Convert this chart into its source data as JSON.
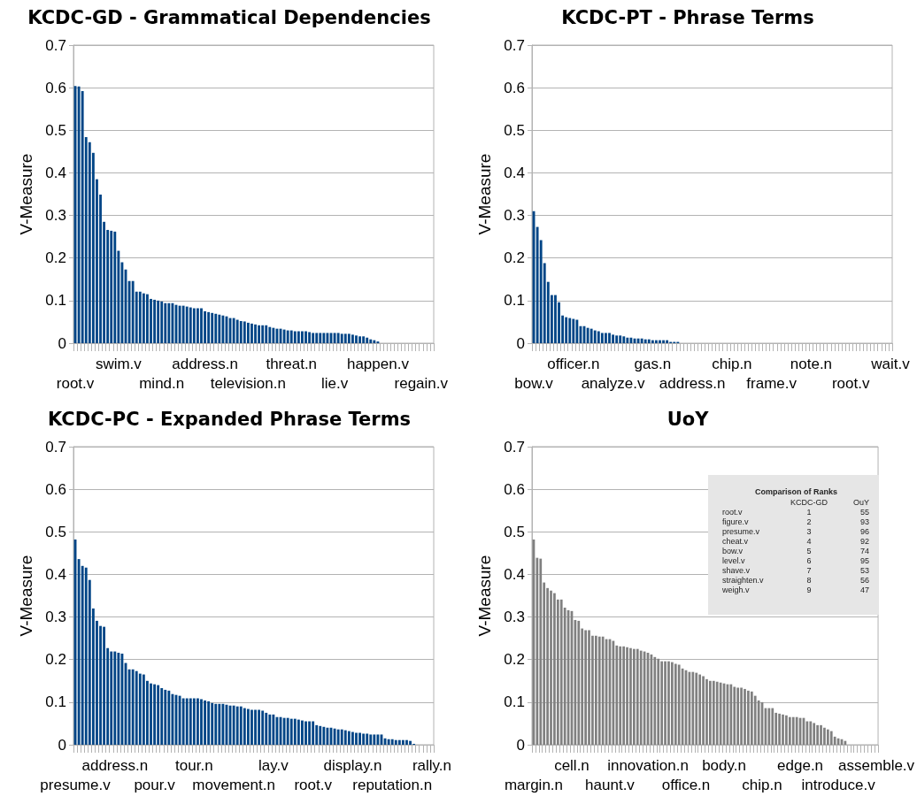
{
  "chart_data": [
    {
      "type": "bar",
      "title": "KCDC-GD - Grammatical Dependencies",
      "ylabel": "V-Measure",
      "color": "#004586",
      "grid": "y",
      "ylim": [
        0,
        0.7
      ],
      "yticks": [
        0,
        0.1,
        0.2,
        0.3,
        0.4,
        0.5,
        0.6,
        0.7
      ],
      "categories": [
        "root.v",
        null,
        null,
        null,
        null,
        null,
        null,
        null,
        null,
        null,
        null,
        null,
        "swim.v",
        null,
        null,
        null,
        null,
        null,
        null,
        null,
        null,
        null,
        null,
        null,
        "mind.n",
        null,
        null,
        null,
        null,
        null,
        null,
        null,
        null,
        null,
        null,
        null,
        "address.n",
        null,
        null,
        null,
        null,
        null,
        null,
        null,
        null,
        null,
        null,
        null,
        "television.n",
        null,
        null,
        null,
        null,
        null,
        null,
        null,
        null,
        null,
        null,
        null,
        "threat.n",
        null,
        null,
        null,
        null,
        null,
        null,
        null,
        null,
        null,
        null,
        null,
        "lie.v",
        null,
        null,
        null,
        null,
        null,
        null,
        null,
        null,
        null,
        null,
        null,
        "happen.v",
        null,
        null,
        null,
        null,
        null,
        null,
        null,
        null,
        null,
        null,
        null,
        "regain.v",
        null,
        null,
        null
      ],
      "values": [
        0.604,
        0.603,
        0.592,
        0.484,
        0.472,
        0.447,
        0.385,
        0.349,
        0.285,
        0.266,
        0.264,
        0.262,
        0.217,
        0.19,
        0.173,
        0.146,
        0.146,
        0.121,
        0.121,
        0.117,
        0.115,
        0.104,
        0.102,
        0.1,
        0.098,
        0.094,
        0.094,
        0.094,
        0.09,
        0.088,
        0.088,
        0.086,
        0.084,
        0.082,
        0.082,
        0.082,
        0.075,
        0.073,
        0.071,
        0.069,
        0.067,
        0.065,
        0.063,
        0.059,
        0.059,
        0.055,
        0.052,
        0.051,
        0.048,
        0.046,
        0.044,
        0.042,
        0.042,
        0.042,
        0.038,
        0.036,
        0.034,
        0.034,
        0.032,
        0.03,
        0.03,
        0.028,
        0.028,
        0.028,
        0.028,
        0.026,
        0.024,
        0.024,
        0.024,
        0.024,
        0.024,
        0.024,
        0.024,
        0.024,
        0.022,
        0.022,
        0.022,
        0.02,
        0.018,
        0.016,
        0.016,
        0.013,
        0.009,
        0.007,
        0.004,
        0,
        0,
        0,
        0,
        0,
        0,
        0,
        0,
        0,
        0,
        0,
        0,
        0,
        0,
        0
      ]
    },
    {
      "type": "bar",
      "title": "KCDC-PT - Phrase Terms",
      "ylabel": "V-Measure",
      "color": "#004586",
      "grid": "y",
      "ylim": [
        0,
        0.7
      ],
      "yticks": [
        0,
        0.1,
        0.2,
        0.3,
        0.4,
        0.5,
        0.6,
        0.7
      ],
      "categories": [
        "bow.v",
        null,
        null,
        null,
        null,
        null,
        null,
        null,
        null,
        null,
        null,
        "officer.n",
        null,
        null,
        null,
        null,
        null,
        null,
        null,
        null,
        null,
        null,
        "analyze.v",
        null,
        null,
        null,
        null,
        null,
        null,
        null,
        null,
        null,
        null,
        "gas.n",
        null,
        null,
        null,
        null,
        null,
        null,
        null,
        null,
        null,
        null,
        "address.n",
        null,
        null,
        null,
        null,
        null,
        null,
        null,
        null,
        null,
        null,
        "chip.n",
        null,
        null,
        null,
        null,
        null,
        null,
        null,
        null,
        null,
        null,
        "frame.v",
        null,
        null,
        null,
        null,
        null,
        null,
        null,
        null,
        null,
        null,
        "note.n",
        null,
        null,
        null,
        null,
        null,
        null,
        null,
        null,
        null,
        null,
        "root.v",
        null,
        null,
        null,
        null,
        null,
        null,
        null,
        null,
        null,
        null,
        "wait.v"
      ],
      "values": [
        0.31,
        0.273,
        0.242,
        0.188,
        0.144,
        0.113,
        0.113,
        0.096,
        0.065,
        0.061,
        0.059,
        0.057,
        0.055,
        0.04,
        0.04,
        0.036,
        0.034,
        0.03,
        0.028,
        0.024,
        0.024,
        0.024,
        0.02,
        0.018,
        0.018,
        0.016,
        0.013,
        0.013,
        0.011,
        0.011,
        0.011,
        0.009,
        0.009,
        0.007,
        0.007,
        0.007,
        0.007,
        0.007,
        0.003,
        0.003,
        0.003,
        0,
        0,
        0,
        0,
        0,
        0,
        0,
        0,
        0,
        0,
        0,
        0,
        0,
        0,
        0,
        0,
        0,
        0,
        0,
        0,
        0,
        0,
        0,
        0,
        0,
        0,
        0,
        0,
        0,
        0,
        0,
        0,
        0,
        0,
        0,
        0,
        0,
        0,
        0,
        0,
        0,
        0,
        0,
        0,
        0,
        0,
        0,
        0,
        0,
        0,
        0,
        0,
        0,
        0,
        0,
        0,
        0,
        0,
        0
      ]
    },
    {
      "type": "bar",
      "title": "KCDC-PC - Expanded Phrase Terms",
      "ylabel": "V-Measure",
      "color": "#004586",
      "grid": "y",
      "ylim": [
        0,
        0.7
      ],
      "yticks": [
        0,
        0.1,
        0.2,
        0.3,
        0.4,
        0.5,
        0.6,
        0.7
      ],
      "categories": [
        "presume.v",
        null,
        null,
        null,
        null,
        null,
        null,
        null,
        null,
        null,
        null,
        "address.n",
        null,
        null,
        null,
        null,
        null,
        null,
        null,
        null,
        null,
        null,
        "pour.v",
        null,
        null,
        null,
        null,
        null,
        null,
        null,
        null,
        null,
        null,
        "tour.n",
        null,
        null,
        null,
        null,
        null,
        null,
        null,
        null,
        null,
        null,
        "movement.n",
        null,
        null,
        null,
        null,
        null,
        null,
        null,
        null,
        null,
        null,
        "lay.v",
        null,
        null,
        null,
        null,
        null,
        null,
        null,
        null,
        null,
        null,
        "root.v",
        null,
        null,
        null,
        null,
        null,
        null,
        null,
        null,
        null,
        null,
        "display.n",
        null,
        null,
        null,
        null,
        null,
        null,
        null,
        null,
        null,
        null,
        "reputation.n",
        null,
        null,
        null,
        null,
        null,
        null,
        null,
        null,
        null,
        null,
        "rally.n"
      ],
      "values": [
        0.482,
        0.436,
        0.42,
        0.416,
        0.387,
        0.32,
        0.291,
        0.279,
        0.277,
        0.227,
        0.219,
        0.219,
        0.216,
        0.214,
        0.192,
        0.177,
        0.177,
        0.173,
        0.167,
        0.165,
        0.15,
        0.144,
        0.142,
        0.14,
        0.133,
        0.129,
        0.127,
        0.119,
        0.117,
        0.115,
        0.109,
        0.109,
        0.109,
        0.109,
        0.109,
        0.107,
        0.104,
        0.102,
        0.098,
        0.096,
        0.096,
        0.096,
        0.094,
        0.092,
        0.092,
        0.09,
        0.09,
        0.086,
        0.084,
        0.082,
        0.082,
        0.082,
        0.08,
        0.075,
        0.071,
        0.071,
        0.065,
        0.065,
        0.063,
        0.063,
        0.061,
        0.061,
        0.059,
        0.057,
        0.055,
        0.055,
        0.055,
        0.046,
        0.044,
        0.042,
        0.04,
        0.04,
        0.038,
        0.036,
        0.036,
        0.034,
        0.032,
        0.03,
        0.028,
        0.028,
        0.026,
        0.026,
        0.024,
        0.024,
        0.024,
        0.024,
        0.015,
        0.013,
        0.013,
        0.011,
        0.011,
        0.011,
        0.011,
        0.009,
        0.002,
        0,
        0,
        0,
        0,
        0
      ]
    },
    {
      "type": "bar",
      "title": "UoY",
      "ylabel": "V-Measure",
      "color": "#808080",
      "grid": "y",
      "ylim": [
        0,
        0.7
      ],
      "yticks": [
        0,
        0.1,
        0.2,
        0.3,
        0.4,
        0.5,
        0.6,
        0.7
      ],
      "categories": [
        "margin.n",
        null,
        null,
        null,
        null,
        null,
        null,
        null,
        null,
        null,
        null,
        "cell.n",
        null,
        null,
        null,
        null,
        null,
        null,
        null,
        null,
        null,
        null,
        "haunt.v",
        null,
        null,
        null,
        null,
        null,
        null,
        null,
        null,
        null,
        null,
        "innovation.n",
        null,
        null,
        null,
        null,
        null,
        null,
        null,
        null,
        null,
        null,
        "office.n",
        null,
        null,
        null,
        null,
        null,
        null,
        null,
        null,
        null,
        null,
        "body.n",
        null,
        null,
        null,
        null,
        null,
        null,
        null,
        null,
        null,
        null,
        "chip.n",
        null,
        null,
        null,
        null,
        null,
        null,
        null,
        null,
        null,
        null,
        "edge.n",
        null,
        null,
        null,
        null,
        null,
        null,
        null,
        null,
        null,
        null,
        "introduce.v",
        null,
        null,
        null,
        null,
        null,
        null,
        null,
        null,
        null,
        null,
        "assemble.v"
      ],
      "values": [
        0.482,
        0.439,
        0.437,
        0.381,
        0.368,
        0.362,
        0.356,
        0.341,
        0.341,
        0.322,
        0.316,
        0.314,
        0.293,
        0.291,
        0.273,
        0.269,
        0.269,
        0.256,
        0.256,
        0.254,
        0.254,
        0.248,
        0.248,
        0.244,
        0.233,
        0.231,
        0.231,
        0.229,
        0.227,
        0.225,
        0.225,
        0.221,
        0.219,
        0.216,
        0.212,
        0.206,
        0.202,
        0.196,
        0.196,
        0.196,
        0.194,
        0.19,
        0.188,
        0.179,
        0.175,
        0.171,
        0.171,
        0.169,
        0.165,
        0.161,
        0.154,
        0.15,
        0.15,
        0.148,
        0.146,
        0.144,
        0.142,
        0.142,
        0.136,
        0.134,
        0.134,
        0.131,
        0.127,
        0.125,
        0.115,
        0.104,
        0.1,
        0.086,
        0.086,
        0.086,
        0.075,
        0.073,
        0.071,
        0.069,
        0.065,
        0.065,
        0.065,
        0.063,
        0.063,
        0.055,
        0.055,
        0.051,
        0.046,
        0.046,
        0.04,
        0.036,
        0.032,
        0.019,
        0.015,
        0.013,
        0.009,
        0,
        0,
        0,
        0,
        0,
        0,
        0,
        0,
        0
      ],
      "annotations": [
        "Comparison of Ranks",
        "\tKCDC-GD\tOuY",
        "root.v\t1\t55",
        "figure.v\t2\t93",
        "presume.v\t3\t96",
        "cheat.v\t4\t92",
        "bow.v\t5\t74",
        "level.v\t6\t95",
        "shave.v\t7\t53",
        "straighten.v\t8\t56",
        "weigh.v\t9\t47"
      ]
    }
  ]
}
